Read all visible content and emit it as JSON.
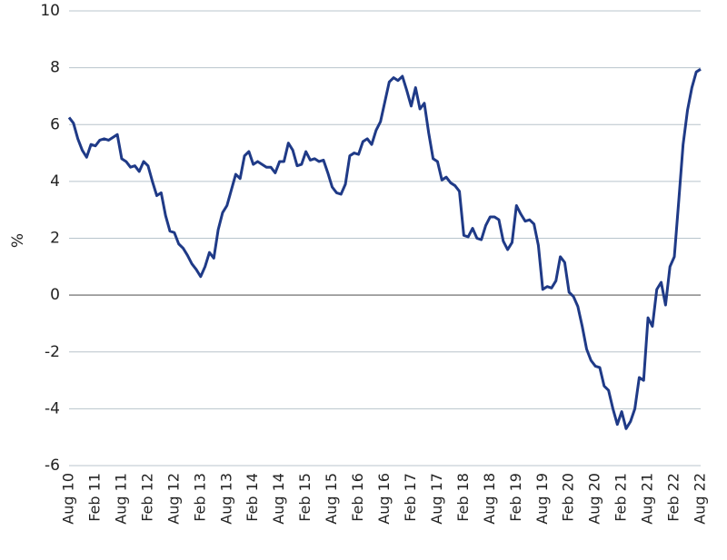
{
  "chart_data": {
    "type": "line",
    "y_label": "%",
    "categories": [
      "Aug 10",
      null,
      null,
      null,
      null,
      null,
      "Feb 11",
      null,
      null,
      null,
      null,
      null,
      "Aug 11",
      null,
      null,
      null,
      null,
      null,
      "Feb 12",
      null,
      null,
      null,
      null,
      null,
      "Aug 12",
      null,
      null,
      null,
      null,
      null,
      "Feb 13",
      null,
      null,
      null,
      null,
      null,
      "Aug 13",
      null,
      null,
      null,
      null,
      null,
      "Feb 14",
      null,
      null,
      null,
      null,
      null,
      "Aug 14",
      null,
      null,
      null,
      null,
      null,
      "Feb 15",
      null,
      null,
      null,
      null,
      null,
      "Aug 15",
      null,
      null,
      null,
      null,
      null,
      "Feb 16",
      null,
      null,
      null,
      null,
      null,
      "Aug 16",
      null,
      null,
      null,
      null,
      null,
      "Feb 17",
      null,
      null,
      null,
      null,
      null,
      "Aug 17",
      null,
      null,
      null,
      null,
      null,
      "Feb 18",
      null,
      null,
      null,
      null,
      null,
      "Aug 18",
      null,
      null,
      null,
      null,
      null,
      "Feb 19",
      null,
      null,
      null,
      null,
      null,
      "Aug 19",
      null,
      null,
      null,
      null,
      null,
      "Feb 20",
      null,
      null,
      null,
      null,
      null,
      "Aug 20",
      null,
      null,
      null,
      null,
      null,
      "Feb 21",
      null,
      null,
      null,
      null,
      null,
      "Aug 21",
      null,
      null,
      null,
      null,
      null,
      "Feb 22",
      null,
      null,
      null,
      null,
      null,
      "Aug 22"
    ],
    "values": [
      6.25,
      6.05,
      5.5,
      5.1,
      4.85,
      5.3,
      5.25,
      5.45,
      5.5,
      5.45,
      5.55,
      5.65,
      4.8,
      4.7,
      4.5,
      4.55,
      4.35,
      4.7,
      4.55,
      4.0,
      3.5,
      3.6,
      2.8,
      2.25,
      2.2,
      1.8,
      1.65,
      1.4,
      1.1,
      0.9,
      0.65,
      1.0,
      1.5,
      1.3,
      2.3,
      2.9,
      3.15,
      3.7,
      4.25,
      4.1,
      4.9,
      5.05,
      4.6,
      4.7,
      4.6,
      4.5,
      4.5,
      4.3,
      4.7,
      4.7,
      5.35,
      5.1,
      4.55,
      4.6,
      5.05,
      4.75,
      4.8,
      4.7,
      4.75,
      4.3,
      3.8,
      3.6,
      3.55,
      3.9,
      4.9,
      5.0,
      4.95,
      5.4,
      5.5,
      5.3,
      5.8,
      6.1,
      6.8,
      7.5,
      7.65,
      7.55,
      7.7,
      7.2,
      6.65,
      7.3,
      6.55,
      6.75,
      5.7,
      4.8,
      4.7,
      4.05,
      4.15,
      3.95,
      3.85,
      3.65,
      2.1,
      2.05,
      2.35,
      2.0,
      1.95,
      2.45,
      2.75,
      2.75,
      2.65,
      1.9,
      1.6,
      1.85,
      3.15,
      2.85,
      2.6,
      2.65,
      2.5,
      1.75,
      0.2,
      0.3,
      0.25,
      0.5,
      1.35,
      1.15,
      0.1,
      -0.05,
      -0.4,
      -1.1,
      -1.9,
      -2.3,
      -2.5,
      -2.55,
      -3.2,
      -3.35,
      -4.0,
      -4.55,
      -4.1,
      -4.7,
      -4.45,
      -4.0,
      -2.9,
      -3.0,
      -0.8,
      -1.1,
      0.2,
      0.45,
      -0.35,
      1.0,
      1.35,
      3.3,
      5.3,
      6.5,
      7.3,
      7.85,
      7.95
    ],
    "color": "#1f3a87",
    "ylim": [
      -6,
      10
    ],
    "yticks": [
      -6,
      -4,
      -2,
      0,
      2,
      4,
      6,
      8,
      10
    ],
    "grid": true
  }
}
